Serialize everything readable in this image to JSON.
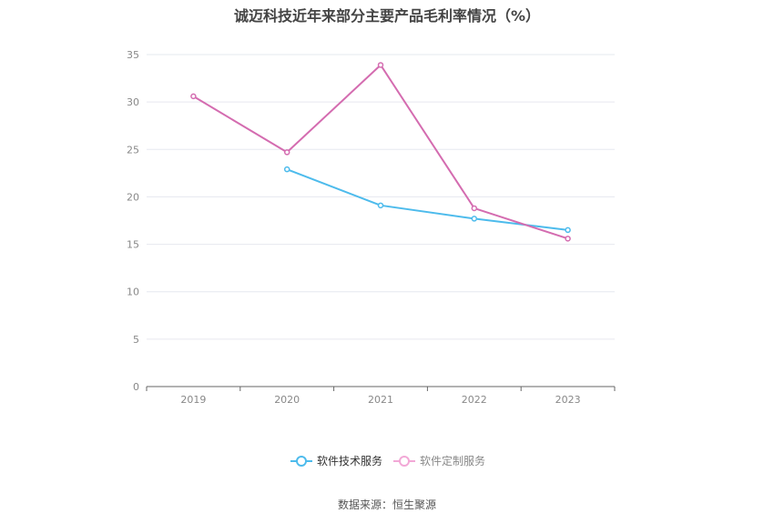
{
  "chart_data": {
    "type": "line",
    "title": "诚迈科技近年来部分主要产品毛利率情况（%）",
    "source": "数据来源：恒生聚源",
    "x": [
      "2019",
      "2020",
      "2021",
      "2022",
      "2023"
    ],
    "ylim": [
      0,
      35
    ],
    "yticks": [
      0,
      5,
      10,
      15,
      20,
      25,
      30,
      35
    ],
    "grid": true,
    "legend": "bottom-center",
    "series": [
      {
        "name": "软件技术服务",
        "color": "#4dbbec",
        "values": [
          null,
          22.9,
          19.1,
          17.7,
          16.5
        ]
      },
      {
        "name": "软件定制服务",
        "color": "#d46cb0",
        "values": [
          30.6,
          24.7,
          33.9,
          18.8,
          15.6
        ]
      }
    ]
  }
}
